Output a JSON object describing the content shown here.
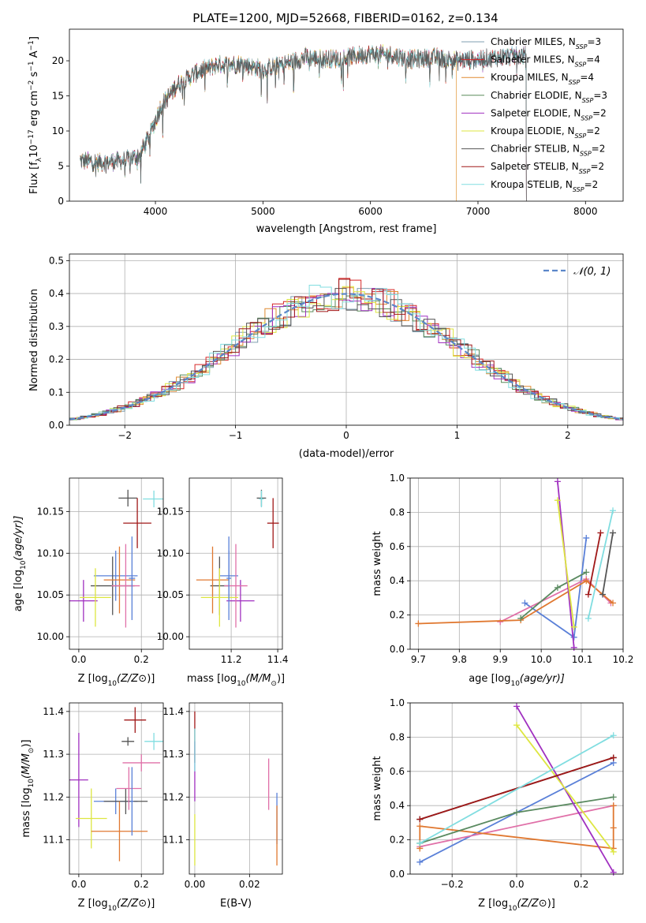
{
  "figure": {
    "title": "PLATE=1200, MJD=52668, FIBERID=0162, z=0.134"
  },
  "colors": {
    "chabrier_miles": "#7f9fb0",
    "salpeter_miles": "#d62728",
    "kroupa_miles": "#e08a30",
    "chabrier_elodie": "#5a8a5a",
    "salpeter_elodie": "#a030c0",
    "kroupa_elodie": "#dde640",
    "chabrier_stelib": "#555555",
    "salpeter_stelib": "#a01818",
    "kroupa_stelib": "#80dde0",
    "pink": "#e070a8",
    "blue": "#5a80d8",
    "orange": "#e07830",
    "green": "#5a8a60",
    "normal": "#5b87c9"
  },
  "legend_spectrum": [
    {
      "label": "Chabrier MILES, N",
      "sub": "SSP",
      "tail": "=3",
      "color": "#7f9fb0"
    },
    {
      "label": "Salpeter MILES, N",
      "sub": "SSP",
      "tail": "=4",
      "color": "#d62728"
    },
    {
      "label": "Kroupa MILES, N",
      "sub": "SSP",
      "tail": "=4",
      "color": "#e08a30"
    },
    {
      "label": "Chabrier ELODIE, N",
      "sub": "SSP",
      "tail": "=3",
      "color": "#5a8a5a"
    },
    {
      "label": "Salpeter ELODIE, N",
      "sub": "SSP",
      "tail": "=2",
      "color": "#a030c0"
    },
    {
      "label": "Kroupa ELODIE, N",
      "sub": "SSP",
      "tail": "=2",
      "color": "#dde640"
    },
    {
      "label": "Chabrier STELIB, N",
      "sub": "SSP",
      "tail": "=2",
      "color": "#555555"
    },
    {
      "label": "Salpeter STELIB, N",
      "sub": "SSP",
      "tail": "=2",
      "color": "#a01818"
    },
    {
      "label": "Kroupa STELIB, N",
      "sub": "SSP",
      "tail": "=2",
      "color": "#80dde0"
    }
  ],
  "legend_hist": {
    "label": "𝒩(0, 1)"
  },
  "chart_data": [
    {
      "id": "spectrum",
      "type": "line",
      "xlabel": "wavelength [Angstrom, rest frame]",
      "ylabel_parts": [
        "Flux [f",
        "λ",
        "10",
        "−17",
        " erg cm",
        "−2",
        " s",
        "−1",
        " A",
        "−1",
        "]"
      ],
      "xlim": [
        3200,
        8350
      ],
      "ylim": [
        0,
        24.5
      ],
      "xticks": [
        4000,
        5000,
        6000,
        7000,
        8000
      ],
      "yticks": [
        0,
        5,
        10,
        15,
        20
      ],
      "grid": false,
      "legend": "top-right",
      "profile": {
        "x": [
          3300,
          3500,
          3700,
          3850,
          3950,
          4050,
          4200,
          4400,
          4600,
          4800,
          5000,
          5200,
          5400,
          5600,
          5800,
          6000,
          6200,
          6400,
          6600,
          6800,
          7000,
          7200,
          7400
        ],
        "y": [
          5.8,
          5.5,
          5.8,
          6.5,
          9.5,
          13.5,
          16.5,
          18.5,
          19.5,
          19.5,
          18.8,
          19.5,
          20.5,
          20.2,
          20.5,
          21.0,
          20.8,
          20.2,
          20.5,
          20.0,
          20.2,
          20.5,
          20.8
        ]
      },
      "model_ranges": [
        [
          3300,
          7450
        ],
        [
          3300,
          7450
        ],
        [
          3300,
          6800
        ],
        [
          3300,
          7450
        ],
        [
          3300,
          7450
        ],
        [
          3930,
          6800
        ],
        [
          3300,
          7450
        ],
        [
          3500,
          7450
        ],
        [
          3300,
          7450
        ]
      ]
    },
    {
      "id": "residual_hist",
      "type": "histogram",
      "xlabel": "(data-model)/error",
      "ylabel": "Normed distribution",
      "xlim": [
        -2.5,
        2.5
      ],
      "ylim": [
        0,
        0.52
      ],
      "xticks": [
        -2,
        -1,
        0,
        1,
        2
      ],
      "xtick_labels": [
        "−2",
        "−1",
        "0",
        "1",
        "2"
      ],
      "yticks": [
        0.0,
        0.1,
        0.2,
        0.3,
        0.4,
        0.5
      ],
      "ytick_labels": [
        "0.0",
        "0.1",
        "0.2",
        "0.3",
        "0.4",
        "0.5"
      ],
      "bin_width": 0.1,
      "grid": true,
      "legend": "top-right",
      "normal_curve": {
        "mu": 0,
        "sigma": 1
      }
    },
    {
      "id": "age_vs_Z",
      "type": "errorbar",
      "xlabel_parts": [
        "Z [log",
        "10",
        "(Z/Z",
        "⊙",
        ")]"
      ],
      "ylabel_parts": [
        "age  [log",
        "10",
        "(age/yr)]"
      ],
      "xlim": [
        -0.03,
        0.27
      ],
      "ylim": [
        9.985,
        10.19
      ],
      "xticks": [
        0.0,
        0.2
      ],
      "xtick_labels": [
        "0.0",
        "0.2"
      ],
      "yticks": [
        10.0,
        10.05,
        10.1,
        10.15
      ],
      "ytick_labels": [
        "10.00",
        "10.05",
        "10.10",
        "10.15"
      ],
      "grid": true,
      "points": [
        {
          "x": 0.015,
          "y": 10.043,
          "xerr": 0.045,
          "yerr": 0.025,
          "color": "#a030c0"
        },
        {
          "x": 0.118,
          "y": 10.073,
          "xerr": 0.07,
          "yerr": 0.03,
          "color": "#5a80d8"
        },
        {
          "x": 0.108,
          "y": 10.061,
          "xerr": 0.07,
          "yerr": 0.035,
          "color": "#555555"
        },
        {
          "x": 0.13,
          "y": 10.068,
          "xerr": 0.05,
          "yerr": 0.04,
          "color": "#e07830"
        },
        {
          "x": 0.15,
          "y": 10.061,
          "xerr": 0.045,
          "yerr": 0.05,
          "color": "#e070a8"
        },
        {
          "x": 0.053,
          "y": 10.047,
          "xerr": 0.05,
          "yerr": 0.035,
          "color": "#dde640"
        },
        {
          "x": 0.17,
          "y": 10.07,
          "xerr": 0.01,
          "yerr": 0.05,
          "color": "#5a80d8"
        },
        {
          "x": 0.157,
          "y": 10.166,
          "xerr": 0.03,
          "yerr": 0.01,
          "color": "#555555"
        },
        {
          "x": 0.187,
          "y": 10.136,
          "xerr": 0.045,
          "yerr": 0.03,
          "color": "#a01818"
        },
        {
          "x": 0.24,
          "y": 10.165,
          "xerr": 0.035,
          "yerr": 0.01,
          "color": "#80dde0"
        }
      ]
    },
    {
      "id": "age_vs_mass",
      "type": "errorbar",
      "xlabel_parts": [
        "mass [log",
        "10",
        "(M/M",
        "⊙",
        ")]"
      ],
      "xlim": [
        11.02,
        11.42
      ],
      "ylim": [
        9.985,
        10.19
      ],
      "xticks": [
        11.2,
        11.4
      ],
      "xtick_labels": [
        "11.2",
        "11.4"
      ],
      "yticks": [
        10.0,
        10.05,
        10.1,
        10.15
      ],
      "ytick_labels": [
        "10.00",
        "10.05",
        "10.10",
        "10.15"
      ],
      "grid": true,
      "points": [
        {
          "x": 11.24,
          "y": 10.043,
          "xerr": 0.06,
          "yerr": 0.025,
          "color": "#a030c0"
        },
        {
          "x": 11.19,
          "y": 10.073,
          "xerr": 0.04,
          "yerr": 0.03,
          "color": "#5a80d8"
        },
        {
          "x": 11.15,
          "y": 10.061,
          "xerr": 0.04,
          "yerr": 0.035,
          "color": "#555555"
        },
        {
          "x": 11.12,
          "y": 10.068,
          "xerr": 0.07,
          "yerr": 0.04,
          "color": "#e07830"
        },
        {
          "x": 11.22,
          "y": 10.061,
          "xerr": 0.05,
          "yerr": 0.05,
          "color": "#e070a8"
        },
        {
          "x": 11.15,
          "y": 10.047,
          "xerr": 0.08,
          "yerr": 0.035,
          "color": "#dde640"
        },
        {
          "x": 11.19,
          "y": 10.07,
          "xerr": 0.01,
          "yerr": 0.05,
          "color": "#5a80d8"
        },
        {
          "x": 11.33,
          "y": 10.166,
          "xerr": 0.02,
          "yerr": 0.01,
          "color": "#555555"
        },
        {
          "x": 11.38,
          "y": 10.136,
          "xerr": 0.025,
          "yerr": 0.03,
          "color": "#a01818"
        },
        {
          "x": 11.33,
          "y": 10.165,
          "xerr": 0.01,
          "yerr": 0.01,
          "color": "#80dde0"
        }
      ]
    },
    {
      "id": "weight_vs_age",
      "type": "line",
      "xlabel_parts": [
        "age  [log",
        "10",
        "(age/yr)]"
      ],
      "ylabel": "mass weight",
      "xlim": [
        9.68,
        10.2
      ],
      "ylim": [
        0,
        1
      ],
      "xticks": [
        9.7,
        9.8,
        9.9,
        10.0,
        10.1,
        10.2
      ],
      "xtick_labels": [
        "9.7",
        "9.8",
        "9.9",
        "10.0",
        "10.1",
        "10.2"
      ],
      "yticks": [
        0,
        0.2,
        0.4,
        0.6,
        0.8,
        1.0
      ],
      "ytick_labels": [
        "0.0",
        "0.2",
        "0.4",
        "0.6",
        "0.8",
        "1.0"
      ],
      "grid": true,
      "series": [
        {
          "color": "#5a80d8",
          "x": [
            9.96,
            10.08,
            10.11
          ],
          "y": [
            0.27,
            0.07,
            0.65
          ]
        },
        {
          "color": "#e070a8",
          "x": [
            9.9,
            10.11,
            10.17
          ],
          "y": [
            0.16,
            0.41,
            0.27
          ]
        },
        {
          "color": "#e07830",
          "x": [
            9.7,
            9.95,
            10.11,
            10.175
          ],
          "y": [
            0.15,
            0.17,
            0.4,
            0.27
          ]
        },
        {
          "color": "#5a8a60",
          "x": [
            9.95,
            10.04,
            10.11
          ],
          "y": [
            0.18,
            0.36,
            0.45
          ]
        },
        {
          "color": "#a030c0",
          "x": [
            10.04,
            10.08
          ],
          "y": [
            0.98,
            0.01
          ]
        },
        {
          "color": "#dde640",
          "x": [
            10.04,
            10.08
          ],
          "y": [
            0.87,
            0.13
          ]
        },
        {
          "color": "#555555",
          "x": [
            10.15,
            10.175
          ],
          "y": [
            0.32,
            0.68
          ]
        },
        {
          "color": "#a01818",
          "x": [
            10.115,
            10.145
          ],
          "y": [
            0.32,
            0.68
          ]
        },
        {
          "color": "#80dde0",
          "x": [
            10.115,
            10.175
          ],
          "y": [
            0.18,
            0.81
          ]
        }
      ]
    },
    {
      "id": "mass_vs_Z",
      "type": "errorbar",
      "xlabel_parts": [
        "Z [log",
        "10",
        "(Z/Z",
        "⊙",
        ")]"
      ],
      "ylabel_parts": [
        "mass [log",
        "10",
        "(M/M",
        "⊙",
        ")]"
      ],
      "xlim": [
        -0.03,
        0.27
      ],
      "ylim": [
        11.02,
        11.42
      ],
      "xticks": [
        0.0,
        0.2
      ],
      "xtick_labels": [
        "0.0",
        "0.2"
      ],
      "yticks": [
        11.1,
        11.2,
        11.3,
        11.4
      ],
      "ytick_labels": [
        "11.1",
        "11.2",
        "11.3",
        "11.4"
      ],
      "grid": true,
      "points": [
        {
          "x": 0.0,
          "y": 11.24,
          "xerr": 0.03,
          "yerr": 0.11,
          "color": "#a030c0"
        },
        {
          "x": 0.04,
          "y": 11.15,
          "xerr": 0.05,
          "yerr": 0.07,
          "color": "#dde640"
        },
        {
          "x": 0.2,
          "y": 11.28,
          "xerr": 0.06,
          "yerr": 0.02,
          "color": "#e070a8"
        },
        {
          "x": 0.118,
          "y": 11.19,
          "xerr": 0.07,
          "yerr": 0.03,
          "color": "#5a80d8"
        },
        {
          "x": 0.15,
          "y": 11.19,
          "xerr": 0.07,
          "yerr": 0.03,
          "color": "#555555"
        },
        {
          "x": 0.13,
          "y": 11.12,
          "xerr": 0.09,
          "yerr": 0.07,
          "color": "#e07830"
        },
        {
          "x": 0.16,
          "y": 11.22,
          "xerr": 0.04,
          "yerr": 0.05,
          "color": "#e070a8"
        },
        {
          "x": 0.17,
          "y": 11.19,
          "xerr": 0.005,
          "yerr": 0.08,
          "color": "#5a80d8"
        },
        {
          "x": 0.157,
          "y": 11.33,
          "xerr": 0.02,
          "yerr": 0.01,
          "color": "#555555"
        },
        {
          "x": 0.18,
          "y": 11.38,
          "xerr": 0.035,
          "yerr": 0.03,
          "color": "#a01818"
        },
        {
          "x": 0.24,
          "y": 11.33,
          "xerr": 0.03,
          "yerr": 0.02,
          "color": "#80dde0"
        }
      ]
    },
    {
      "id": "mass_vs_ebv",
      "type": "errorbar",
      "xlabel": "E(B-V)",
      "xlim": [
        -0.002,
        0.032
      ],
      "ylim": [
        11.02,
        11.42
      ],
      "xticks": [
        0.0,
        0.02
      ],
      "xtick_labels": [
        "0.00",
        "0.02"
      ],
      "yticks": [
        11.1,
        11.2,
        11.3,
        11.4
      ],
      "ytick_labels": [
        "11.1",
        "11.2",
        "11.3",
        "11.4"
      ],
      "grid": true,
      "points": [
        {
          "x": 0.0,
          "y": 11.34,
          "xerr": 0,
          "yerr": 0.06,
          "color": "#a01818"
        },
        {
          "x": 0.0,
          "y": 11.26,
          "xerr": 0,
          "yerr": 0.07,
          "color": "#a030c0"
        },
        {
          "x": 0.0,
          "y": 11.31,
          "xerr": 0,
          "yerr": 0.05,
          "color": "#80dde0"
        },
        {
          "x": 0.0,
          "y": 11.1,
          "xerr": 0,
          "yerr": 0.06,
          "color": "#dde640"
        },
        {
          "x": 0.027,
          "y": 11.23,
          "xerr": 0,
          "yerr": 0.06,
          "color": "#e070a8"
        },
        {
          "x": 0.03,
          "y": 11.15,
          "xerr": 0,
          "yerr": 0.06,
          "color": "#5a80d8"
        },
        {
          "x": 0.03,
          "y": 11.11,
          "xerr": 0,
          "yerr": 0.07,
          "color": "#e07830"
        }
      ]
    },
    {
      "id": "weight_vs_Z",
      "type": "line",
      "xlabel_parts": [
        "Z [log",
        "10",
        "(Z/Z",
        "⊙",
        ")]"
      ],
      "ylabel": "mass weight",
      "xlim": [
        -0.33,
        0.33
      ],
      "ylim": [
        0,
        1
      ],
      "xticks": [
        -0.2,
        0.0,
        0.2
      ],
      "xtick_labels": [
        "−0.2",
        "0.0",
        "0.2"
      ],
      "yticks": [
        0,
        0.2,
        0.4,
        0.6,
        0.8,
        1.0
      ],
      "ytick_labels": [
        "0.0",
        "0.2",
        "0.4",
        "0.6",
        "0.8",
        "1.0"
      ],
      "grid": true,
      "series": [
        {
          "color": "#5a80d8",
          "x": [
            -0.3,
            0.3
          ],
          "y": [
            0.07,
            0.65
          ]
        },
        {
          "color": "#e070a8",
          "x": [
            -0.3,
            0.3
          ],
          "y": [
            0.16,
            0.4
          ]
        },
        {
          "color": "#e07830",
          "x": [
            -0.3,
            -0.3,
            0.3,
            0.3,
            0.3
          ],
          "y": [
            0.15,
            0.28,
            0.15,
            0.4,
            0.27
          ]
        },
        {
          "color": "#5a8a60",
          "x": [
            -0.3,
            0.0,
            0.3
          ],
          "y": [
            0.18,
            0.36,
            0.45
          ]
        },
        {
          "color": "#a030c0",
          "x": [
            0.0,
            0.3
          ],
          "y": [
            0.98,
            0.01
          ]
        },
        {
          "color": "#dde640",
          "x": [
            0.0,
            0.3
          ],
          "y": [
            0.87,
            0.13
          ]
        },
        {
          "color": "#555555",
          "x": [
            -0.3,
            0.3
          ],
          "y": [
            0.32,
            0.68
          ]
        },
        {
          "color": "#a01818",
          "x": [
            -0.3,
            0.3
          ],
          "y": [
            0.32,
            0.68
          ]
        },
        {
          "color": "#80dde0",
          "x": [
            -0.3,
            0.3
          ],
          "y": [
            0.18,
            0.81
          ]
        }
      ]
    }
  ]
}
